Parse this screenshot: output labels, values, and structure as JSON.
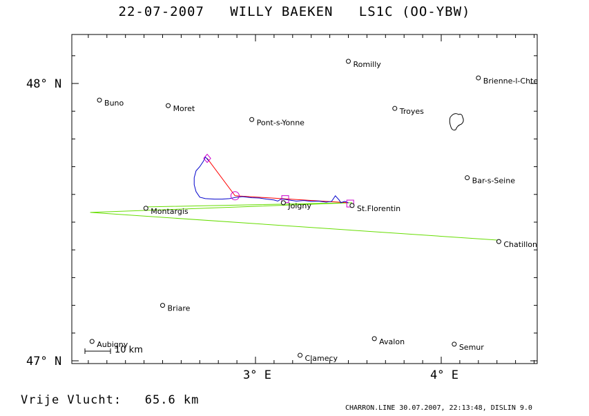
{
  "title": "22-07-2007   WILLY BAEKEN   LS1C (OO-YBW)",
  "axes": {
    "lat_labels": [
      "48° N",
      "47° N"
    ],
    "lon_labels": [
      "3° E",
      "4° E"
    ]
  },
  "towns": [
    {
      "name": "Romilly",
      "lon": 3.5,
      "lat": 48.08
    },
    {
      "name": "Brienne-l-Chte",
      "lon": 4.2,
      "lat": 48.02
    },
    {
      "name": "Buno",
      "lon": 2.16,
      "lat": 47.94
    },
    {
      "name": "Moret",
      "lon": 2.53,
      "lat": 47.92
    },
    {
      "name": "Troyes",
      "lon": 3.75,
      "lat": 47.91
    },
    {
      "name": "Pont-s-Yonne",
      "lon": 2.98,
      "lat": 47.87
    },
    {
      "name": "Bar-s-Seine",
      "lon": 4.14,
      "lat": 47.66
    },
    {
      "name": "Joigny",
      "lon": 3.15,
      "lat": 47.57
    },
    {
      "name": "St.Florentin",
      "lon": 3.52,
      "lat": 47.56
    },
    {
      "name": "Montargis",
      "lon": 2.41,
      "lat": 47.55
    },
    {
      "name": "Chatillon",
      "lon": 4.31,
      "lat": 47.43
    },
    {
      "name": "Briare",
      "lon": 2.5,
      "lat": 47.2
    },
    {
      "name": "Aubigny",
      "lon": 2.12,
      "lat": 47.07
    },
    {
      "name": "Avalon",
      "lon": 3.64,
      "lat": 47.08
    },
    {
      "name": "Semur",
      "lon": 4.07,
      "lat": 47.06
    },
    {
      "name": "Clamecy",
      "lon": 3.24,
      "lat": 47.02
    }
  ],
  "scale_bar": "10 km",
  "distance": "Vrije Vlucht:   65.6 km",
  "footer": "CHARRON.LINE 30.07.2007, 22:13:48, DISLIN 9.0",
  "colors": {
    "flight_track": "#0000cc",
    "task_line": "#ff0000",
    "declared_line": "#66dd00",
    "turnpoint": "#cc00cc"
  },
  "flight_track": [
    [
      3.5,
      47.57
    ],
    [
      3.48,
      47.575
    ],
    [
      3.46,
      47.57
    ],
    [
      3.45,
      47.58
    ],
    [
      3.43,
      47.595
    ],
    [
      3.41,
      47.575
    ],
    [
      3.38,
      47.572
    ],
    [
      3.34,
      47.576
    ],
    [
      3.3,
      47.575
    ],
    [
      3.26,
      47.578
    ],
    [
      3.22,
      47.576
    ],
    [
      3.18,
      47.58
    ],
    [
      3.14,
      47.584
    ],
    [
      3.12,
      47.576
    ],
    [
      3.1,
      47.58
    ],
    [
      3.06,
      47.583
    ],
    [
      3.02,
      47.587
    ],
    [
      2.98,
      47.588
    ],
    [
      2.93,
      47.592
    ],
    [
      2.9,
      47.59
    ],
    [
      2.86,
      47.585
    ],
    [
      2.82,
      47.583
    ],
    [
      2.78,
      47.583
    ],
    [
      2.73,
      47.585
    ],
    [
      2.7,
      47.59
    ],
    [
      2.68,
      47.61
    ],
    [
      2.67,
      47.635
    ],
    [
      2.67,
      47.66
    ],
    [
      2.68,
      47.685
    ],
    [
      2.7,
      47.7
    ],
    [
      2.72,
      47.72
    ],
    [
      2.73,
      47.735
    ],
    [
      2.75,
      47.72
    ]
  ],
  "task_line": [
    [
      2.74,
      47.73
    ],
    [
      2.89,
      47.595
    ],
    [
      3.5,
      47.57
    ]
  ],
  "declared_line": [
    [
      2.42,
      47.555
    ],
    [
      3.52,
      47.57
    ],
    [
      2.11,
      47.535
    ],
    [
      4.31,
      47.435
    ]
  ],
  "turnpoints": [
    {
      "type": "diamond",
      "lon": 2.74,
      "lat": 47.73
    },
    {
      "type": "circle",
      "lon": 2.89,
      "lat": 47.595
    },
    {
      "type": "square",
      "lon": 3.16,
      "lat": 47.583
    },
    {
      "type": "square",
      "lon": 3.51,
      "lat": 47.567
    }
  ]
}
